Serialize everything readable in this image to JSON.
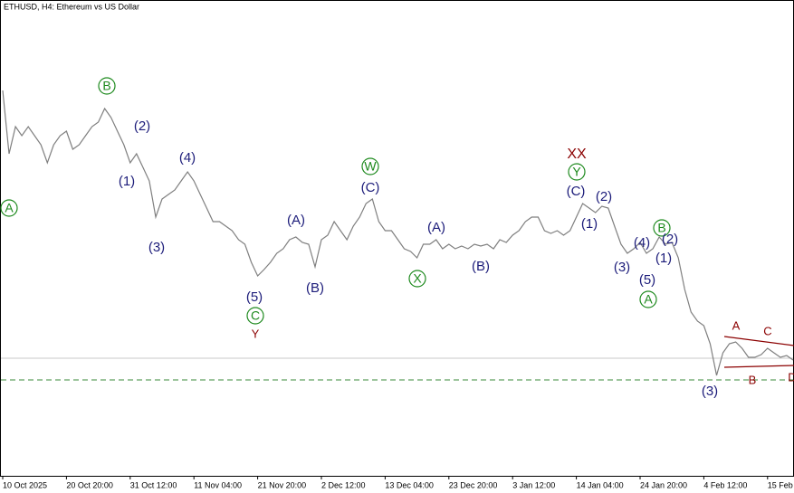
{
  "chart_data": {
    "type": "line",
    "title": "ETHUSD, H4:  Ethereum vs US Dollar",
    "categories": [
      "10 Oct 2025",
      null,
      null,
      null,
      null,
      null,
      null,
      null,
      null,
      null,
      "20 Oct 20:00",
      null,
      null,
      null,
      null,
      null,
      null,
      null,
      null,
      null,
      "31 Oct 12:00",
      null,
      null,
      null,
      null,
      null,
      null,
      null,
      null,
      null,
      "11 Nov 04:00",
      null,
      null,
      null,
      null,
      null,
      null,
      null,
      null,
      null,
      "21 Nov 20:00",
      null,
      null,
      null,
      null,
      null,
      null,
      null,
      null,
      null,
      "2 Dec 12:00",
      null,
      null,
      null,
      null,
      null,
      null,
      null,
      null,
      null,
      "13 Dec 04:00",
      null,
      null,
      null,
      null,
      null,
      null,
      null,
      null,
      null,
      "23 Dec 20:00",
      null,
      null,
      null,
      null,
      null,
      null,
      null,
      null,
      null,
      "3 Jan 12:00",
      null,
      null,
      null,
      null,
      null,
      null,
      null,
      null,
      null,
      "14 Jan 04:00",
      null,
      null,
      null,
      null,
      null,
      null,
      null,
      null,
      null,
      "24 Jan 20:00",
      null,
      null,
      null,
      null,
      null,
      null,
      null,
      null,
      null,
      "4 Feb 12:00",
      null,
      null,
      null,
      null,
      null,
      null,
      null,
      null,
      null,
      "15 Feb",
      null,
      null,
      null,
      null
    ],
    "series": [
      {
        "color": "#7f7f7f",
        "values": [
          4400,
          3840,
          4080,
          4000,
          4080,
          4000,
          3920,
          3760,
          3920,
          4000,
          4040,
          3880,
          3920,
          4000,
          4080,
          4120,
          4240,
          4160,
          4040,
          3920,
          3760,
          3840,
          3720,
          3600,
          3280,
          3440,
          3480,
          3520,
          3600,
          3680,
          3600,
          3480,
          3360,
          3240,
          3240,
          3200,
          3160,
          3080,
          3040,
          2880,
          2760,
          2816,
          2880,
          2960,
          3000,
          3080,
          3104,
          3056,
          3040,
          2840,
          3080,
          3120,
          3240,
          3160,
          3080,
          3200,
          3280,
          3400,
          3440,
          3240,
          3160,
          3160,
          3080,
          3000,
          2976,
          2920,
          3040,
          3040,
          3080,
          3000,
          3040,
          3000,
          3024,
          3000,
          3040,
          3024,
          3040,
          3000,
          3080,
          3056,
          3120,
          3160,
          3240,
          3280,
          3280,
          3160,
          3136,
          3160,
          3120,
          3160,
          3280,
          3400,
          3360,
          3320,
          3376,
          3360,
          3200,
          3040,
          2960,
          3000,
          3056,
          2960,
          3000,
          3104,
          3040,
          3056,
          2920,
          2640,
          2440,
          2360,
          2320,
          2160,
          1880,
          2080,
          2160,
          2176,
          2120,
          2040,
          2040,
          2064,
          2120,
          2080,
          2040,
          2056,
          2016
        ]
      }
    ],
    "ylim": [
      1000,
      5200
    ],
    "levels": [
      {
        "value": 2032,
        "color": "#c8c8c8",
        "style": "solid"
      },
      {
        "value": 1840,
        "color": "#3a8a3a",
        "style": "dashed"
      }
    ],
    "annotations": [
      {
        "text": "A",
        "color": "#1e8a1e",
        "circled": true
      },
      {
        "text": "B",
        "color": "#1e8a1e",
        "circled": true
      },
      {
        "text": "(2)",
        "color": "#1c1c7a",
        "circled": false
      },
      {
        "text": "(1)",
        "color": "#1c1c7a",
        "circled": false
      },
      {
        "text": "(4)",
        "color": "#1c1c7a",
        "circled": false
      },
      {
        "text": "(3)",
        "color": "#1c1c7a",
        "circled": false
      },
      {
        "text": "(5)",
        "color": "#1c1c7a",
        "circled": false
      },
      {
        "text": "C",
        "color": "#1e8a1e",
        "circled": true
      },
      {
        "text": "Y",
        "color": "#8b0000",
        "circled": false
      },
      {
        "text": "(B)",
        "color": "#1c1c7a",
        "circled": false
      },
      {
        "text": "(A)",
        "color": "#1c1c7a",
        "circled": false
      },
      {
        "text": "(C)",
        "color": "#1c1c7a",
        "circled": false
      },
      {
        "text": "W",
        "color": "#1e8a1e",
        "circled": true
      },
      {
        "text": "X",
        "color": "#1e8a1e",
        "circled": true
      },
      {
        "text": "(A)",
        "color": "#1c1c7a",
        "circled": false
      },
      {
        "text": "(B)",
        "color": "#1c1c7a",
        "circled": false
      },
      {
        "text": "XX",
        "color": "#8b0000",
        "circled": false
      },
      {
        "text": "Y",
        "color": "#1e8a1e",
        "circled": true
      },
      {
        "text": "(C)",
        "color": "#1c1c7a",
        "circled": false
      },
      {
        "text": "(2)",
        "color": "#1c1c7a",
        "circled": false
      },
      {
        "text": "(1)",
        "color": "#1c1c7a",
        "circled": false
      },
      {
        "text": "(3)",
        "color": "#1c1c7a",
        "circled": false
      },
      {
        "text": "(4)",
        "color": "#1c1c7a",
        "circled": false
      },
      {
        "text": "(5)",
        "color": "#1c1c7a",
        "circled": false
      },
      {
        "text": "A",
        "color": "#1e8a1e",
        "circled": true
      },
      {
        "text": "B",
        "color": "#1e8a1e",
        "circled": true
      },
      {
        "text": "(2)",
        "color": "#1c1c7a",
        "circled": false
      },
      {
        "text": "(1)",
        "color": "#1c1c7a",
        "circled": false
      },
      {
        "text": "(3)",
        "color": "#1c1c7a",
        "circled": false
      },
      {
        "text": "A",
        "color": "#8b0000",
        "circled": false
      },
      {
        "text": "C",
        "color": "#8b0000",
        "circled": false
      },
      {
        "text": "B",
        "color": "#8b0000",
        "circled": false
      },
      {
        "text": "D",
        "color": "#8b0000",
        "circled": false
      }
    ]
  }
}
